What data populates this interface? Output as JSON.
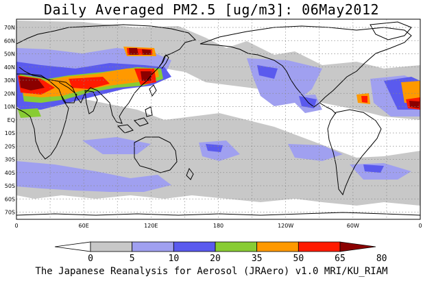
{
  "title": "Daily Averaged PM2.5 [ug/m3]: 06May2012",
  "footer": "The Japanese Reanalysis for Aerosol (JRAero) v1.0 MRI/KU_RIAM",
  "map": {
    "lat_labels": [
      "70N",
      "60N",
      "50N",
      "40N",
      "30N",
      "20N",
      "10N",
      "EQ",
      "10S",
      "20S",
      "30S",
      "40S",
      "50S",
      "60S",
      "70S"
    ],
    "lon_labels": [
      "0",
      "60E",
      "120E",
      "180",
      "120W",
      "60W",
      "0"
    ]
  },
  "legend": {
    "levels": [
      "0",
      "5",
      "10",
      "20",
      "35",
      "50",
      "65",
      "80"
    ],
    "colors": [
      "#ffffff",
      "#c8c8c8",
      "#a0a0f0",
      "#5a5aee",
      "#88cc33",
      "#ff9900",
      "#ff1a00",
      "#8b0000"
    ]
  },
  "colors": {
    "land_outline": "#000000",
    "grid": "#888888"
  }
}
